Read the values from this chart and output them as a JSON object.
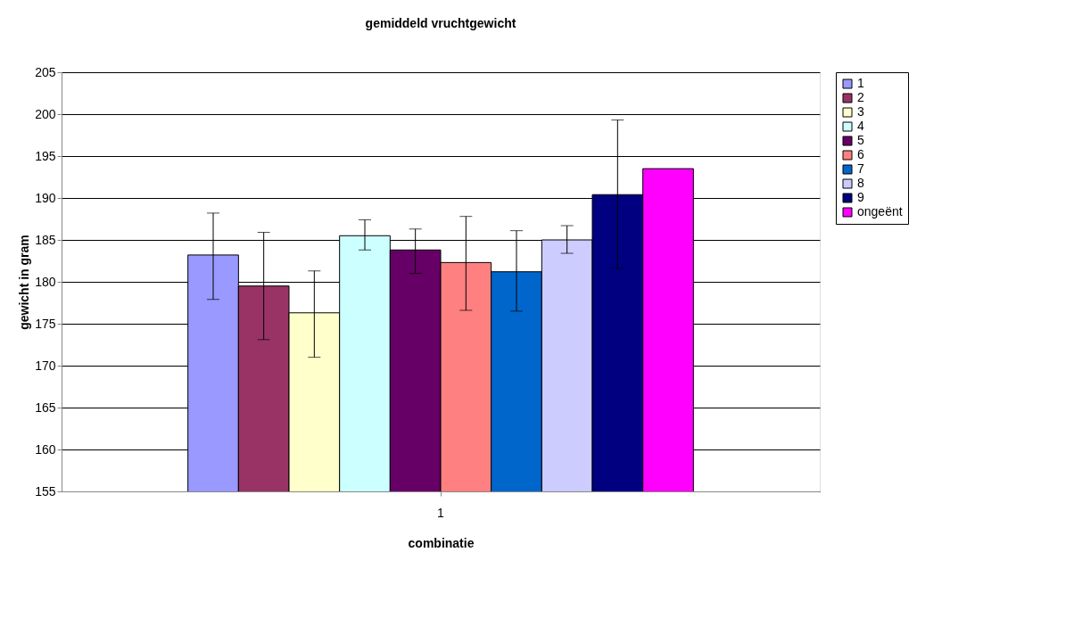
{
  "chart_data": {
    "type": "bar",
    "title": "gemiddeld vruchtgewicht",
    "xlabel": "combinatie",
    "ylabel": "gewicht in gram",
    "categories": [
      "1"
    ],
    "series": [
      {
        "name": "1",
        "color": "#9999ff",
        "values": [
          183.2
        ],
        "errors": [
          [
            177.9,
            188.2
          ]
        ]
      },
      {
        "name": "2",
        "color": "#993366",
        "values": [
          179.5
        ],
        "errors": [
          [
            173.1,
            185.9
          ]
        ]
      },
      {
        "name": "3",
        "color": "#ffffcc",
        "values": [
          176.3
        ],
        "errors": [
          [
            171.0,
            181.3
          ]
        ]
      },
      {
        "name": "4",
        "color": "#ccffff",
        "values": [
          185.5
        ],
        "errors": [
          [
            183.8,
            187.4
          ]
        ]
      },
      {
        "name": "5",
        "color": "#660066",
        "values": [
          183.8
        ],
        "errors": [
          [
            181.0,
            186.3
          ]
        ]
      },
      {
        "name": "6",
        "color": "#ff8080",
        "values": [
          182.3
        ],
        "errors": [
          [
            176.6,
            187.8
          ]
        ]
      },
      {
        "name": "7",
        "color": "#0066cc",
        "values": [
          181.2
        ],
        "errors": [
          [
            176.5,
            186.1
          ]
        ]
      },
      {
        "name": "8",
        "color": "#ccccff",
        "values": [
          185.0
        ],
        "errors": [
          [
            183.4,
            186.7
          ]
        ]
      },
      {
        "name": "9",
        "color": "#000080",
        "values": [
          190.4
        ],
        "errors": [
          [
            181.6,
            199.3
          ]
        ]
      },
      {
        "name": "ongeënt",
        "color": "#ff00ff",
        "values": [
          193.5
        ],
        "errors": [
          null
        ]
      }
    ],
    "ylim": [
      155,
      205
    ],
    "yticks": [
      155,
      160,
      165,
      170,
      175,
      180,
      185,
      190,
      195,
      200,
      205
    ],
    "grid": "y",
    "legend": "right"
  }
}
